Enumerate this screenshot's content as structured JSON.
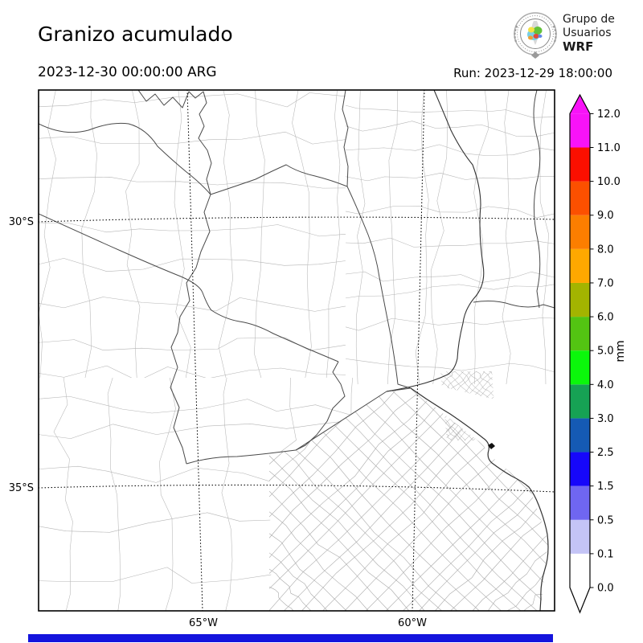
{
  "header": {
    "title": "Granizo acumulado",
    "valid_time": "2023-12-30 00:00:00 ARG",
    "run_label": "Run: 2023-12-29 18:00:00"
  },
  "logo": {
    "line1": "Grupo de",
    "line2": "Usuarios",
    "line3": "WRF"
  },
  "map": {
    "y_tick_labels": [
      "30°S",
      "35°S"
    ],
    "x_tick_labels": [
      "65°W",
      "60°W"
    ]
  },
  "colorbar": {
    "unit": "mm",
    "tick_labels": [
      "0.0",
      "0.1",
      "0.5",
      "1.5",
      "2.5",
      "3.0",
      "4.0",
      "5.0",
      "6.0",
      "7.0",
      "8.0",
      "9.0",
      "10.0",
      "11.0",
      "12.0"
    ],
    "segment_colors": [
      "#ffffff",
      "#c4c4f6",
      "#6f66f1",
      "#1607fa",
      "#155ab4",
      "#16a254",
      "#0bf70b",
      "#53c412",
      "#a3b400",
      "#ffa800",
      "#fc7e00",
      "#fc5000",
      "#fb0f00",
      "#f813f8"
    ],
    "over_color": "#f813f8",
    "under_color": "#ffffff"
  },
  "footer_bar": {
    "color": "#1414dd"
  },
  "style": {
    "province_line": "#4a4a4a",
    "coast_line": "#333333",
    "department_line": "#b5b5b5",
    "ba_department_line": "#a9a9a9",
    "grid_line": "#000000"
  }
}
